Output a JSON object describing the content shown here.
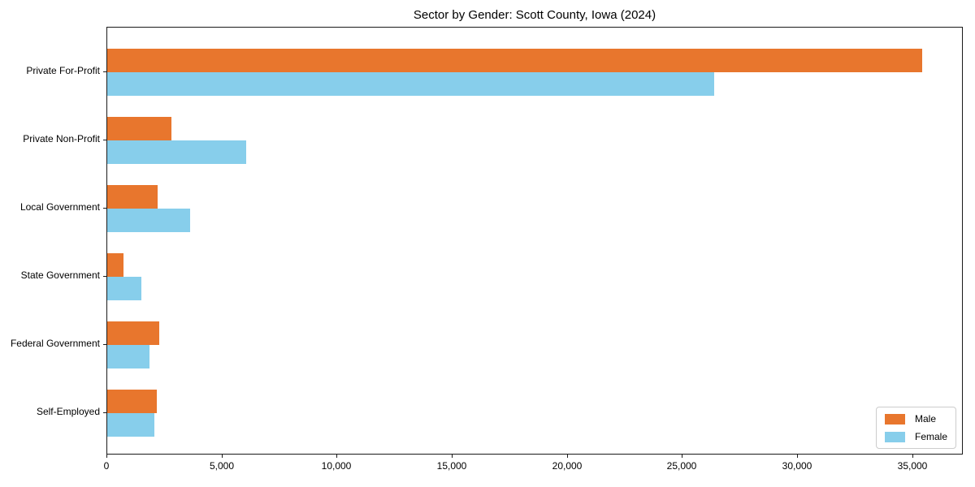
{
  "chart_data": {
    "type": "bar",
    "orientation": "horizontal",
    "title": "Sector by Gender: Scott County, Iowa (2024)",
    "categories": [
      "Private For-Profit",
      "Private Non-Profit",
      "Local Government",
      "State Government",
      "Federal Government",
      "Self-Employed"
    ],
    "series": [
      {
        "name": "Male",
        "color": "#e8762d",
        "values": [
          35400,
          2800,
          2200,
          700,
          2250,
          2150
        ]
      },
      {
        "name": "Female",
        "color": "#87ceeb",
        "values": [
          26350,
          6050,
          3600,
          1480,
          1830,
          2030
        ]
      }
    ],
    "xlabel": "",
    "ylabel": "",
    "xlim": [
      0,
      37200
    ],
    "x_ticks": [
      0,
      5000,
      10000,
      15000,
      20000,
      25000,
      30000,
      35000
    ],
    "x_tick_labels": [
      "0",
      "5,000",
      "10,000",
      "15,000",
      "20,000",
      "25,000",
      "30,000",
      "35,000"
    ],
    "grid": false,
    "background": "#ffffff",
    "legend": {
      "position": "lower right",
      "entries": [
        {
          "label": "Male",
          "color": "#e8762d"
        },
        {
          "label": "Female",
          "color": "#87ceeb"
        }
      ]
    }
  }
}
